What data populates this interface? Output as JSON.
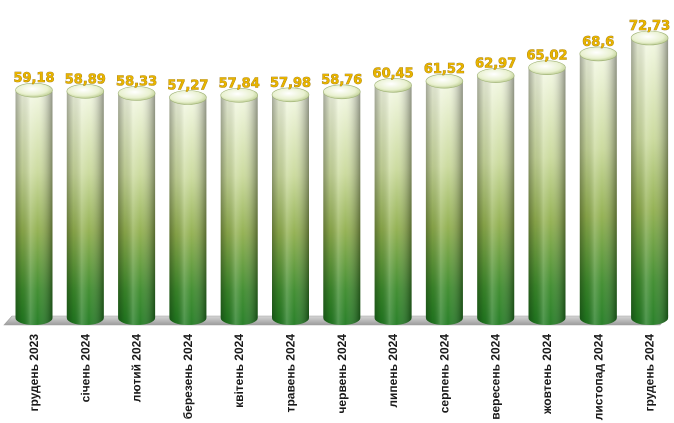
{
  "chart_data": {
    "type": "bar",
    "style": "3d-cylinder",
    "categories": [
      "грудень 2023",
      "січень 2024",
      "лютий 2024",
      "березень 2024",
      "квітень 2024",
      "травень 2024",
      "червень 2024",
      "липень 2024",
      "серпень 2024",
      "вересень 2024",
      "жовтень 2024",
      "листопад 2024",
      "грудень 2024"
    ],
    "values": [
      59.18,
      58.89,
      58.33,
      57.27,
      57.84,
      57.98,
      58.76,
      60.45,
      61.52,
      62.97,
      65.02,
      68.6,
      72.73
    ],
    "labels": [
      "59,18",
      "58,89",
      "58,33",
      "57,27",
      "57,84",
      "57,98",
      "58,76",
      "60,45",
      "61,52",
      "62,97",
      "65,02",
      "68,6",
      "72,73"
    ],
    "title": "",
    "xlabel": "",
    "ylabel": "",
    "grid": false,
    "legend": "none",
    "colors": {
      "bar_top": "#f3f8e3",
      "bar_mid": "#9fb85a",
      "bar_bottom": "#1f7a1f",
      "value_label": "#e8b400",
      "floor": "#b8b8b8"
    }
  }
}
